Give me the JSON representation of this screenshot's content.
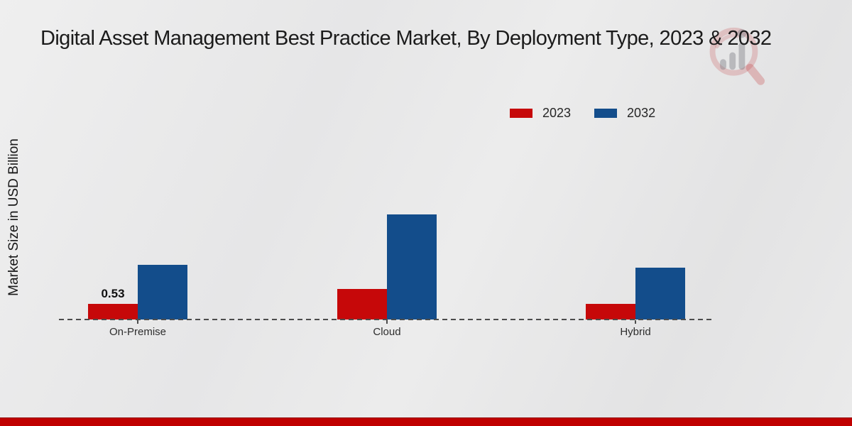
{
  "title": "Digital Asset Management Best Practice Market, By Deployment Type, 2023 & 2032",
  "chart_data": {
    "type": "bar",
    "categories": [
      "On-Premise",
      "Cloud",
      "Hybrid"
    ],
    "series": [
      {
        "name": "2023",
        "color": "#c60809",
        "values": [
          0.53,
          1.04,
          0.53
        ]
      },
      {
        "name": "2032",
        "color": "#134d8b",
        "values": [
          1.85,
          3.57,
          1.76
        ]
      }
    ],
    "ylabel": "Market Size in USD Billion",
    "xlabel": "",
    "ylim": [
      0,
      4
    ],
    "grid": false,
    "legend_position": "top-right",
    "baseline_style": "dashed",
    "data_labels": [
      {
        "series": "2023",
        "category": "On-Premise",
        "text": "0.53"
      }
    ]
  },
  "icons": {
    "watermark": "magnifier-bar-chart-logo"
  },
  "colors": {
    "background": "#e8e8e8",
    "baseline": "#4c4c4c",
    "footer_band": "#c00000",
    "series_2023": "#c60809",
    "series_2032": "#134d8b"
  }
}
